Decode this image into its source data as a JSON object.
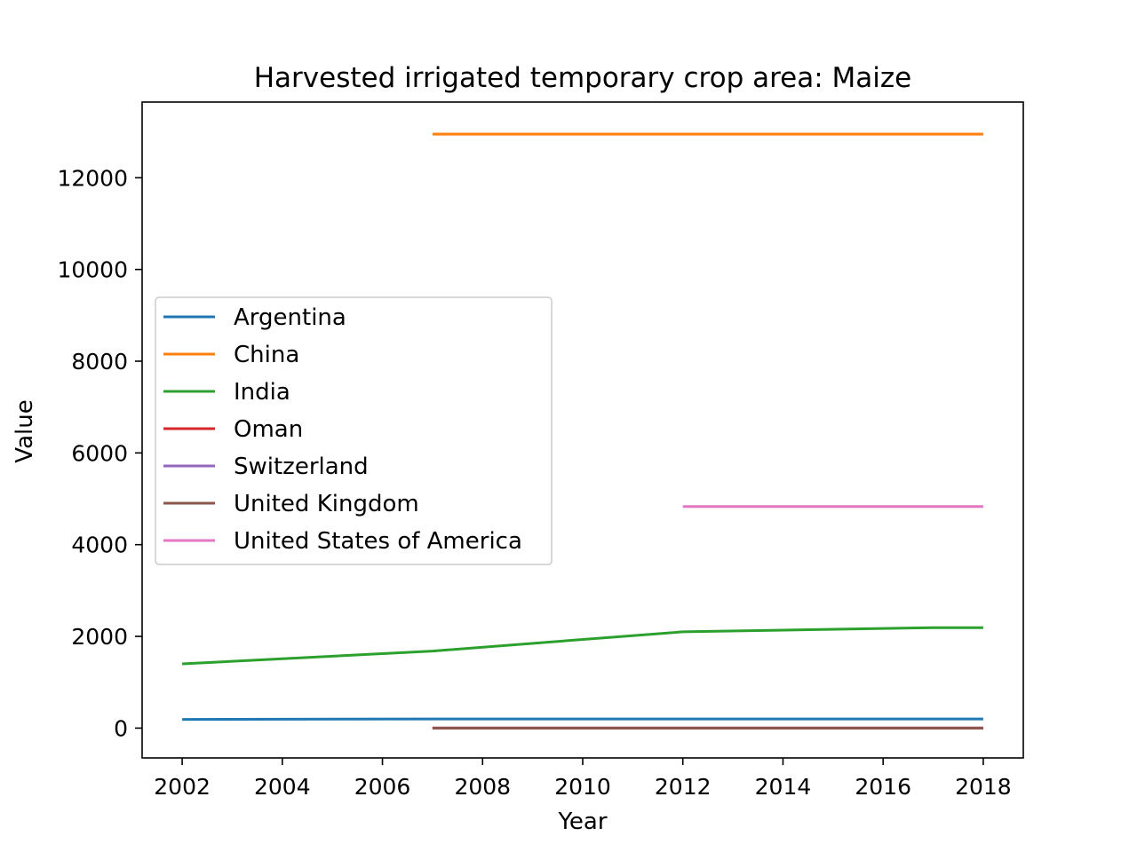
{
  "chart_data": {
    "type": "line",
    "title": "Harvested irrigated temporary crop area: Maize",
    "xlabel": "Year",
    "ylabel": "Value",
    "xlim": [
      2001.2,
      2018.8
    ],
    "ylim": [
      -650,
      13650
    ],
    "xticks": [
      2002,
      2004,
      2006,
      2008,
      2010,
      2012,
      2014,
      2016,
      2018
    ],
    "yticks": [
      0,
      2000,
      4000,
      6000,
      8000,
      10000,
      12000
    ],
    "grid": false,
    "legend_position": "center-left",
    "series": [
      {
        "name": "Argentina",
        "color": "#1f77b4",
        "x": [
          2002,
          2007,
          2012,
          2017,
          2018
        ],
        "y": [
          190,
          200,
          200,
          200,
          200
        ]
      },
      {
        "name": "China",
        "color": "#ff7f0e",
        "x": [
          2007,
          2012,
          2017,
          2018
        ],
        "y": [
          12950,
          12950,
          12950,
          12950
        ]
      },
      {
        "name": "India",
        "color": "#2ca02c",
        "x": [
          2002,
          2007,
          2012,
          2017,
          2018
        ],
        "y": [
          1400,
          1680,
          2100,
          2190,
          2190
        ]
      },
      {
        "name": "Oman",
        "color": "#d62728",
        "x": [
          2007,
          2012,
          2017,
          2018
        ],
        "y": [
          0,
          0,
          0,
          0
        ]
      },
      {
        "name": "Switzerland",
        "color": "#9467bd",
        "x": [
          2007,
          2012,
          2017,
          2018
        ],
        "y": [
          0,
          0,
          0,
          0
        ]
      },
      {
        "name": "United Kingdom",
        "color": "#8c564b",
        "x": [
          2007,
          2012,
          2017,
          2018
        ],
        "y": [
          0,
          0,
          0,
          0
        ]
      },
      {
        "name": "United States of America",
        "color": "#e377c2",
        "x": [
          2012,
          2017,
          2018
        ],
        "y": [
          4830,
          4830,
          4830
        ]
      }
    ]
  }
}
